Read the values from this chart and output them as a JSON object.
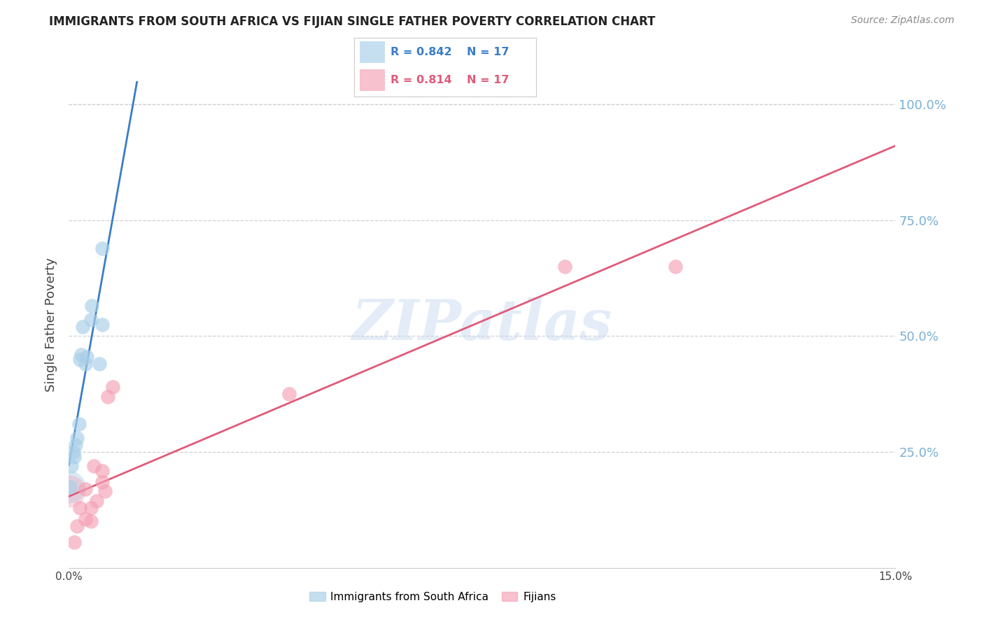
{
  "title": "IMMIGRANTS FROM SOUTH AFRICA VS FIJIAN SINGLE FATHER POVERTY CORRELATION CHART",
  "source": "Source: ZipAtlas.com",
  "ylabel": "Single Father Poverty",
  "watermark": "ZIPatlas",
  "legend_blue_label": "Immigrants from South Africa",
  "legend_pink_label": "Fijians",
  "blue_color": "#a8cfe8",
  "pink_color": "#f4a0b5",
  "blue_line_color": "#3a7dc9",
  "pink_line_color": "#e05a7a",
  "blue_x": [
    0.0002,
    0.0005,
    0.0008,
    0.001,
    0.0012,
    0.0015,
    0.0018,
    0.002,
    0.0022,
    0.0025,
    0.003,
    0.0032,
    0.004,
    0.0042,
    0.0055,
    0.006,
    0.006
  ],
  "blue_y": [
    0.175,
    0.22,
    0.25,
    0.24,
    0.265,
    0.28,
    0.31,
    0.45,
    0.46,
    0.52,
    0.44,
    0.455,
    0.535,
    0.565,
    0.44,
    0.525,
    0.69
  ],
  "pink_x": [
    0.001,
    0.0015,
    0.002,
    0.003,
    0.003,
    0.004,
    0.004,
    0.0045,
    0.005,
    0.006,
    0.006,
    0.0065,
    0.007,
    0.008,
    0.04,
    0.09,
    0.11
  ],
  "pink_y": [
    0.055,
    0.09,
    0.13,
    0.105,
    0.17,
    0.1,
    0.13,
    0.22,
    0.145,
    0.185,
    0.21,
    0.165,
    0.37,
    0.39,
    0.375,
    0.65,
    0.65
  ],
  "xmin": 0.0,
  "xmax": 0.15,
  "ymin": 0.0,
  "ymax": 1.05,
  "yticks": [
    0.25,
    0.5,
    0.75,
    1.0
  ],
  "ytick_labels_right": [
    "25.0%",
    "50.0%",
    "75.0%",
    "100.0%"
  ],
  "xticks": [
    0.0,
    0.03,
    0.06,
    0.09,
    0.12,
    0.15
  ],
  "xtick_labels": [
    "0.0%",
    "",
    "",
    "",
    "",
    "15.0%"
  ],
  "grid_color": "#d0d0d0",
  "background": "#ffffff",
  "R_blue": "0.842",
  "R_pink": "0.814",
  "N_blue": "17",
  "N_pink": "17",
  "right_tick_color": "#7ab0d4",
  "title_fontsize": 12,
  "source_fontsize": 10
}
